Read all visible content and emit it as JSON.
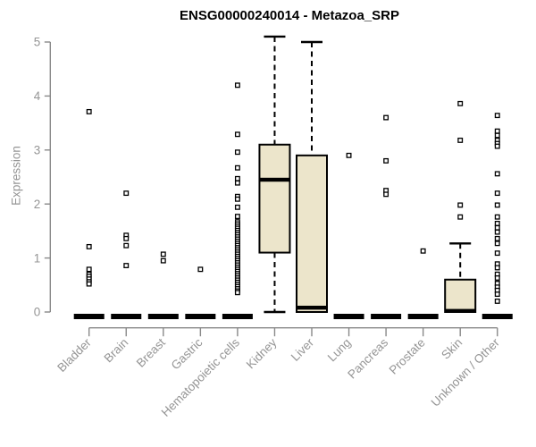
{
  "window": {
    "background": "#ffffff"
  },
  "chart_data": {
    "type": "boxplot",
    "title": "ENSG00000240014 - Metazoa_SRP",
    "xlabel": "",
    "ylabel": "Expression",
    "ylim": [
      0,
      5
    ],
    "yticks": [
      0,
      1,
      2,
      3,
      4,
      5
    ],
    "grid": false,
    "legend": "none",
    "categories": [
      "Bladder",
      "Brain",
      "Breast",
      "Gastric",
      "Hematopoietic cells",
      "Kidney",
      "Liver",
      "Lung",
      "Pancreas",
      "Prostate",
      "Skin",
      "Unknown / Other"
    ],
    "boxes": [
      {
        "category": "Bladder",
        "q1": 0,
        "median": 0,
        "q3": 0,
        "whisker_low": 0,
        "whisker_high": 0,
        "outliers": [
          3.71,
          1.21,
          0.79,
          0.7,
          0.66,
          0.61,
          0.56,
          0.52
        ]
      },
      {
        "category": "Brain",
        "q1": 0,
        "median": 0,
        "q3": 0,
        "whisker_low": 0,
        "whisker_high": 0,
        "outliers": [
          2.2,
          1.42,
          1.36,
          1.23,
          0.86
        ]
      },
      {
        "category": "Breast",
        "q1": 0,
        "median": 0,
        "q3": 0,
        "whisker_low": 0,
        "whisker_high": 0,
        "outliers": [
          1.07,
          0.95
        ]
      },
      {
        "category": "Gastric",
        "q1": 0,
        "median": 0,
        "q3": 0,
        "whisker_low": 0,
        "whisker_high": 0,
        "outliers": [
          0.79
        ]
      },
      {
        "category": "Hematopoietic cells",
        "q1": 0,
        "median": 0,
        "q3": 0,
        "whisker_low": 0,
        "whisker_high": 0,
        "outliers": [
          4.2,
          3.29,
          2.96,
          2.67,
          2.47,
          2.39,
          2.14,
          2.09,
          1.94,
          1.77,
          1.67,
          1.63,
          1.59,
          1.55,
          1.51,
          1.47,
          1.43,
          1.39,
          1.35,
          1.31,
          1.27,
          1.23,
          1.19,
          1.15,
          1.11,
          1.07,
          1.03,
          0.99,
          0.95,
          0.91,
          0.87,
          0.83,
          0.79,
          0.75,
          0.71,
          0.67,
          0.63,
          0.59,
          0.55,
          0.51,
          0.47,
          0.43,
          0.39,
          0.36
        ]
      },
      {
        "category": "Kidney",
        "q1": 1.1,
        "median": 2.45,
        "q3": 3.1,
        "whisker_low": 0,
        "whisker_high": 5.1,
        "outliers": []
      },
      {
        "category": "Liver",
        "q1": 0,
        "median": 0.08,
        "q3": 2.9,
        "whisker_low": 0,
        "whisker_high": 5.0,
        "outliers": []
      },
      {
        "category": "Lung",
        "q1": 0,
        "median": 0,
        "q3": 0,
        "whisker_low": 0,
        "whisker_high": 0,
        "outliers": [
          2.9
        ]
      },
      {
        "category": "Pancreas",
        "q1": 0,
        "median": 0,
        "q3": 0,
        "whisker_low": 0,
        "whisker_high": 0,
        "outliers": [
          3.6,
          2.8,
          2.25,
          2.18
        ]
      },
      {
        "category": "Prostate",
        "q1": 0,
        "median": 0,
        "q3": 0,
        "whisker_low": 0,
        "whisker_high": 0,
        "outliers": [
          1.13
        ]
      },
      {
        "category": "Skin",
        "q1": 0,
        "median": 0.02,
        "q3": 0.6,
        "whisker_low": 0,
        "whisker_high": 1.27,
        "outliers": [
          3.86,
          3.18,
          1.98,
          1.76
        ]
      },
      {
        "category": "Unknown / Other",
        "q1": 0,
        "median": 0,
        "q3": 0,
        "whisker_low": 0,
        "whisker_high": 0,
        "outliers": [
          3.64,
          3.35,
          3.27,
          3.18,
          3.12,
          3.07,
          2.56,
          2.2,
          1.98,
          1.76,
          1.64,
          1.56,
          1.48,
          1.36,
          1.27,
          1.09,
          0.89,
          0.82,
          0.7,
          0.63,
          0.53,
          0.46,
          0.4,
          0.33,
          0.2
        ]
      }
    ],
    "style": {
      "box_fill": "#ece5cb",
      "box_stroke": "#000000",
      "median_color": "#000000",
      "outlier_shape": "open-square",
      "outlier_color": "#000000",
      "axis_color": "#898989",
      "label_color": "#959595",
      "title_color": "#000000"
    }
  }
}
